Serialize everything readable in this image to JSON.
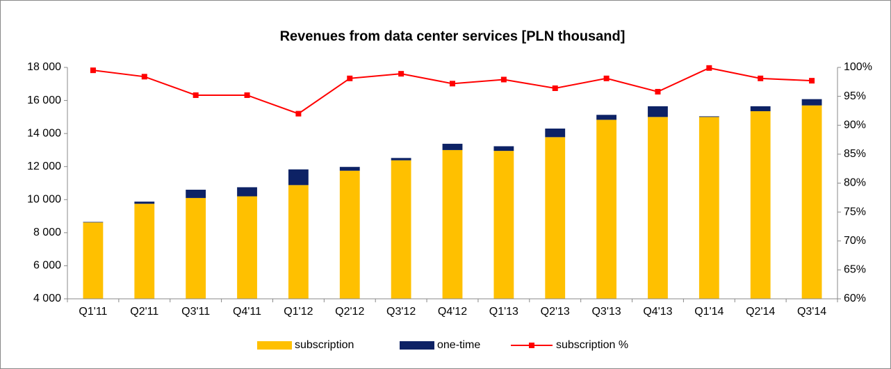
{
  "chart_data": {
    "type": "bar",
    "title": "Revenues from data center services [PLN thousand]",
    "categories": [
      "Q1'11",
      "Q2'11",
      "Q3'11",
      "Q4'11",
      "Q1'12",
      "Q2'12",
      "Q3'12",
      "Q4'12",
      "Q1'13",
      "Q2'13",
      "Q3'13",
      "Q4'13",
      "Q1'14",
      "Q2'14",
      "Q3'14"
    ],
    "stacked": true,
    "series": [
      {
        "name": "subscription",
        "color": "#FFC000",
        "values": [
          8620,
          9750,
          10100,
          10200,
          10880,
          11750,
          12380,
          13000,
          12950,
          13780,
          14830,
          15000,
          15000,
          15350,
          15700
        ]
      },
      {
        "name": "one-time",
        "color": "#0D2265",
        "values": [
          30,
          130,
          500,
          550,
          950,
          230,
          140,
          380,
          280,
          520,
          300,
          650,
          40,
          300,
          380
        ]
      },
      {
        "name": "subscription %",
        "color": "#FF0000",
        "type": "line",
        "axis": "y2",
        "values": [
          99.5,
          98.4,
          95.2,
          95.2,
          92.0,
          98.1,
          98.9,
          97.2,
          97.9,
          96.4,
          98.1,
          95.8,
          99.9,
          98.1,
          97.7
        ]
      }
    ],
    "ylim": [
      4000,
      18000
    ],
    "yticks": [
      {
        "value": 4000,
        "label": "4 000"
      },
      {
        "value": 6000,
        "label": "6 000"
      },
      {
        "value": 8000,
        "label": "8 000"
      },
      {
        "value": 10000,
        "label": "10 000"
      },
      {
        "value": 12000,
        "label": "12 000"
      },
      {
        "value": 14000,
        "label": "14 000"
      },
      {
        "value": 16000,
        "label": "16 000"
      },
      {
        "value": 18000,
        "label": "18 000"
      }
    ],
    "y2lim": [
      60,
      100
    ],
    "y2ticks": [
      {
        "value": 60,
        "label": "60%"
      },
      {
        "value": 65,
        "label": "65%"
      },
      {
        "value": 70,
        "label": "70%"
      },
      {
        "value": 75,
        "label": "75%"
      },
      {
        "value": 80,
        "label": "80%"
      },
      {
        "value": 85,
        "label": "85%"
      },
      {
        "value": 90,
        "label": "90%"
      },
      {
        "value": 95,
        "label": "95%"
      },
      {
        "value": 100,
        "label": "100%"
      }
    ],
    "grid": false,
    "legend": "bottom"
  }
}
